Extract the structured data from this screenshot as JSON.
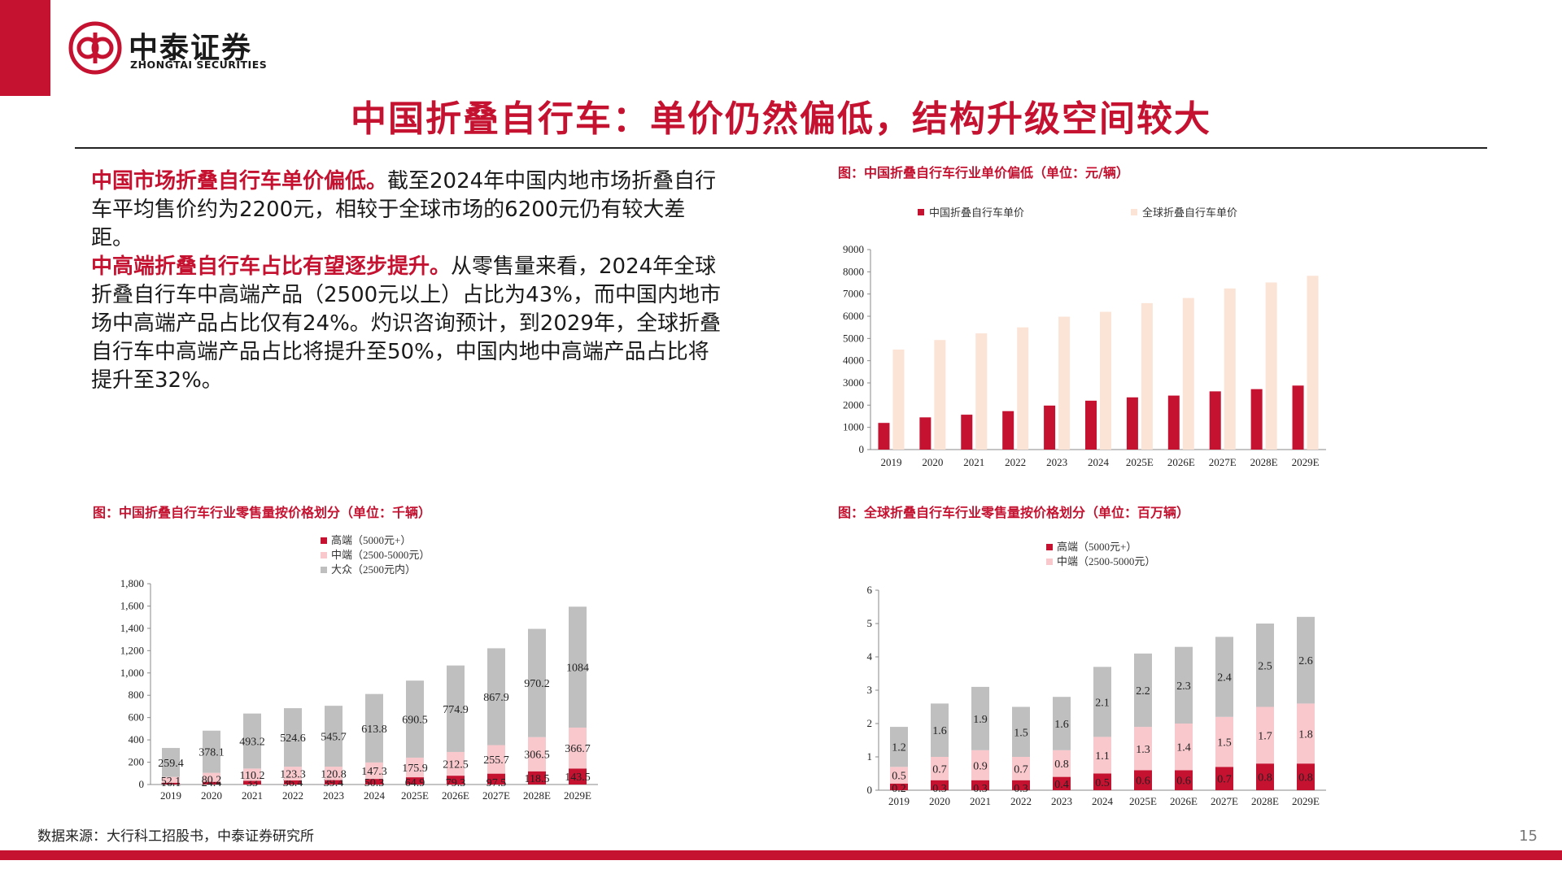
{
  "header": {
    "logo_cn": "中泰证券",
    "logo_en": "ZHONGTAI SECURITIES",
    "slide_title": "中国折叠自行车：单价仍然偏低，结构升级空间较大"
  },
  "body": {
    "p1_highlight": "中国市场折叠自行车单价偏低。",
    "p1_text": "截至2024年中国内地市场折叠自行车平均售价约为2200元，相较于全球市场的6200元仍有较大差距。",
    "p2_highlight": "中高端折叠自行车占比有望逐步提升。",
    "p2_text": "从零售量来看，2024年全球折叠自行车中高端产品（2500元以上）占比为43%，而中国内地市场中高端产品占比仅有24%。灼识咨询预计，到2029年，全球折叠自行车中高端产品占比将提升至50%，中国内地中高端产品占比将提升至32%。"
  },
  "footer": {
    "source": "数据来源：大行科工招股书，中泰证券研究所",
    "page_number": "15"
  },
  "colors": {
    "brand_red": "#C41230",
    "high": "#C41230",
    "mid": "#F8C8CC",
    "mass": "#BFBFBF",
    "global_price": "#FBE3D6"
  },
  "chart_data": [
    {
      "type": "bar",
      "title": "图：中国折叠自行车行业单价偏低（单位：元/辆）",
      "categories": [
        "2019",
        "2020",
        "2021",
        "2022",
        "2023",
        "2024",
        "2025E",
        "2026E",
        "2027E",
        "2028E",
        "2029E"
      ],
      "series": [
        {
          "name": "中国折叠自行车单价",
          "values": [
            1200,
            1450,
            1570,
            1730,
            1980,
            2200,
            2350,
            2430,
            2620,
            2720,
            2880
          ]
        },
        {
          "name": "全球折叠自行车单价",
          "values": [
            4500,
            4930,
            5230,
            5500,
            5980,
            6200,
            6590,
            6820,
            7250,
            7520,
            7820
          ]
        }
      ],
      "ylim": [
        0,
        9000
      ],
      "yticks": [
        "0",
        "1000",
        "2000",
        "3000",
        "4000",
        "5000",
        "6000",
        "7000",
        "8000",
        "9000"
      ],
      "legend": "top",
      "grid": false
    },
    {
      "type": "bar",
      "stacked": true,
      "title": "图：中国折叠自行车行业零售量按价格划分（单位：千辆）",
      "categories": [
        "2019",
        "2020",
        "2021",
        "2022",
        "2023",
        "2024",
        "2025E",
        "2026E",
        "2027E",
        "2028E",
        "2029E"
      ],
      "series": [
        {
          "name": "高端（5000元+）",
          "values": [
            16.1,
            24.4,
            33,
            36.4,
            39.4,
            50.3,
            64.9,
            79.3,
            97.5,
            118.5,
            143.5
          ],
          "labels": [
            "16.1",
            "24.4",
            "33",
            "36.4",
            "39.4",
            "50.3",
            "64.9",
            "79.3",
            "97.5",
            "118.5",
            "143.5"
          ]
        },
        {
          "name": "中端（2500-5000元）",
          "values": [
            52.1,
            80.2,
            110.2,
            123.3,
            120.8,
            147.3,
            175.9,
            212.5,
            255.7,
            306.5,
            366.7
          ],
          "labels": [
            "52.1",
            "80.2",
            "110.2",
            "123.3",
            "120.8",
            "147.3",
            "175.9",
            "212.5",
            "255.7",
            "306.5",
            "366.7"
          ]
        },
        {
          "name": "大众（2500元内）",
          "values": [
            259.4,
            378.1,
            493.2,
            524.6,
            545.7,
            613.8,
            690.5,
            774.9,
            867.9,
            970.2,
            1084
          ],
          "labels": [
            "259.4",
            "378.1",
            "493.2",
            "524.6",
            "545.7",
            "613.8",
            "690.5",
            "774.9",
            "867.9",
            "970.2",
            "1084"
          ]
        }
      ],
      "ylim": [
        0,
        1800
      ],
      "yticks": [
        "0",
        "200",
        "400",
        "600",
        "800",
        "1,000",
        "1,200",
        "1,400",
        "1,600",
        "1,800"
      ],
      "legend": "top",
      "grid": false
    },
    {
      "type": "bar",
      "stacked": true,
      "title": "图：全球折叠自行车行业零售量按价格划分（单位：百万辆）",
      "categories": [
        "2019",
        "2020",
        "2021",
        "2022",
        "2023",
        "2024",
        "2025E",
        "2026E",
        "2027E",
        "2028E",
        "2029E"
      ],
      "series": [
        {
          "name": "高端（5000元+）",
          "values": [
            0.2,
            0.3,
            0.3,
            0.3,
            0.4,
            0.5,
            0.6,
            0.6,
            0.7,
            0.8,
            0.8
          ],
          "labels": [
            "0.2",
            "0.3",
            "0.3",
            "0.3",
            "0.4",
            "0.5",
            "0.6",
            "0.6",
            "0.7",
            "0.8",
            "0.8"
          ]
        },
        {
          "name": "中端（2500-5000元）",
          "values": [
            0.5,
            0.7,
            0.9,
            0.7,
            0.8,
            1.1,
            1.3,
            1.4,
            1.5,
            1.7,
            1.8
          ],
          "labels": [
            "0.5",
            "0.7",
            "0.9",
            "0.7",
            "0.8",
            "1.1",
            "1.3",
            "1.4",
            "1.5",
            "1.7",
            "1.8"
          ]
        },
        {
          "name": "",
          "values": [
            1.2,
            1.6,
            1.9,
            1.5,
            1.6,
            2.1,
            2.2,
            2.3,
            2.4,
            2.5,
            2.6
          ],
          "labels": [
            "1.2",
            "1.6",
            "1.9",
            "1.5",
            "1.6",
            "2.1",
            "2.2",
            "2.3",
            "2.4",
            "2.5",
            "2.6"
          ]
        }
      ],
      "ylim": [
        0,
        6
      ],
      "yticks": [
        "0",
        "1",
        "2",
        "3",
        "4",
        "5",
        "6"
      ],
      "legend": "top",
      "grid": false
    }
  ]
}
